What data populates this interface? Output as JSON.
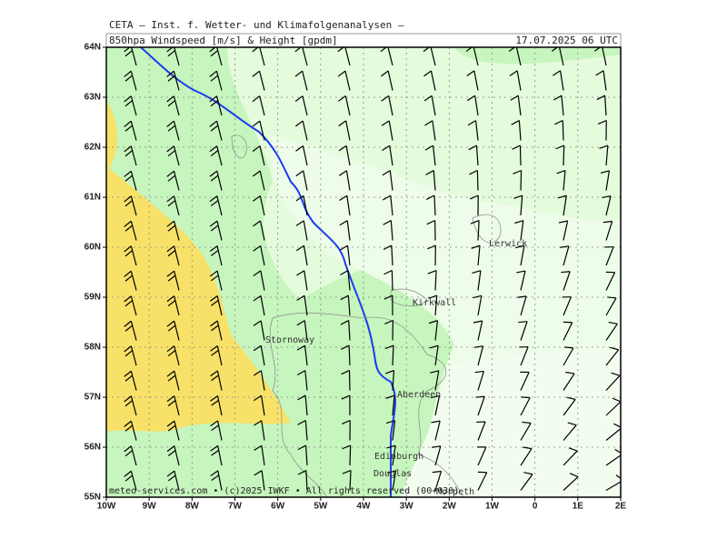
{
  "header": {
    "title": "CETA – Inst. f. Wetter- und Klimafolgenanalysen –",
    "subtitle": "850hpa Windspeed [m/s] & Height [gpdm]",
    "timestamp": "17.07.2025 06 UTC"
  },
  "map": {
    "lat_labels": [
      "64N",
      "63N",
      "62N",
      "61N",
      "60N",
      "59N",
      "58N",
      "57N",
      "56N",
      "55N"
    ],
    "lon_labels": [
      "10W",
      "9W",
      "8W",
      "7W",
      "6W",
      "5W",
      "4W",
      "3W",
      "2W",
      "1W",
      "0",
      "1E",
      "2E"
    ],
    "cities": [
      {
        "label": "Lerwick"
      },
      {
        "label": "Kirkwall"
      },
      {
        "label": "Stornoway"
      },
      {
        "label": "Aberdeen"
      },
      {
        "label": "Edinburgh"
      },
      {
        "label": "Douglas"
      },
      {
        "label": "Morpeth"
      }
    ]
  },
  "footer": "meteo-services.com • (c)2025 IWKF • All rights reserved (00+030)"
}
